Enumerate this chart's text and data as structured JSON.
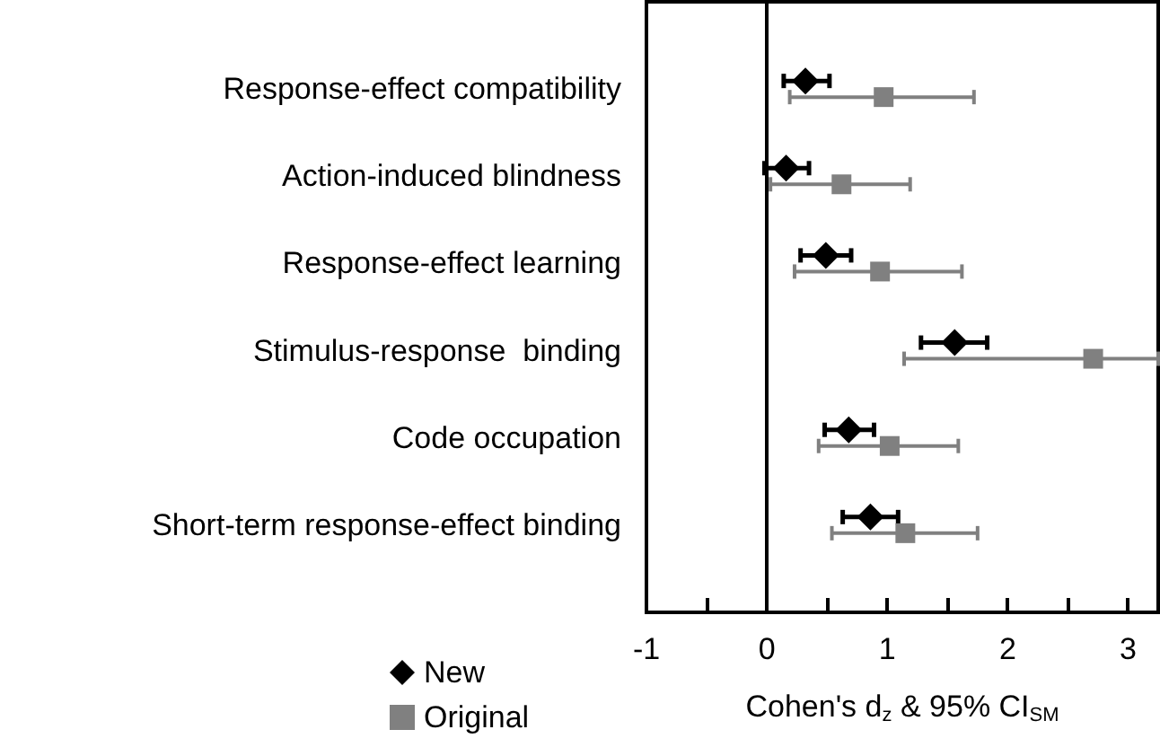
{
  "chart_data": {
    "type": "scatter",
    "orientation": "horizontal",
    "xlabel": "Cohen's d$_{z}$ & 95% CI$_{SM}$",
    "categories": [
      "Response-effect compatibility",
      "Action-induced blindness",
      "Response-effect learning",
      "Stimulus-response  binding",
      "Code occupation",
      "Short-term response-effect binding"
    ],
    "series": [
      {
        "name": "New",
        "color": "#000000",
        "marker": "diamond",
        "values": [
          0.32,
          0.16,
          0.49,
          1.56,
          0.68,
          0.86
        ],
        "errors": [
          [
            0.14,
            0.52
          ],
          [
            -0.02,
            0.35
          ],
          [
            0.28,
            0.7
          ],
          [
            1.28,
            1.83
          ],
          [
            0.48,
            0.89
          ],
          [
            0.63,
            1.09
          ]
        ]
      },
      {
        "name": "Original",
        "color": "#808080",
        "marker": "square",
        "values": [
          0.97,
          0.62,
          0.94,
          2.71,
          1.02,
          1.15
        ],
        "errors": [
          [
            0.19,
            1.72
          ],
          [
            0.03,
            1.19
          ],
          [
            0.23,
            1.62
          ],
          [
            1.14,
            3.25
          ],
          [
            0.43,
            1.59
          ],
          [
            0.54,
            1.75
          ]
        ]
      }
    ],
    "xlim": [
      -1,
      3.25
    ],
    "xticks": [
      -1,
      {
        "value": -0.5,
        "label": null
      },
      0,
      {
        "value": 0.5,
        "label": null
      },
      1,
      {
        "value": 1.5,
        "label": null
      },
      2,
      {
        "value": 2.5,
        "label": null
      },
      3
    ],
    "ref_lines": [
      {
        "axis": "x",
        "value": 0,
        "color": "#000000"
      }
    ],
    "legend": "bottom left",
    "grid": false
  }
}
